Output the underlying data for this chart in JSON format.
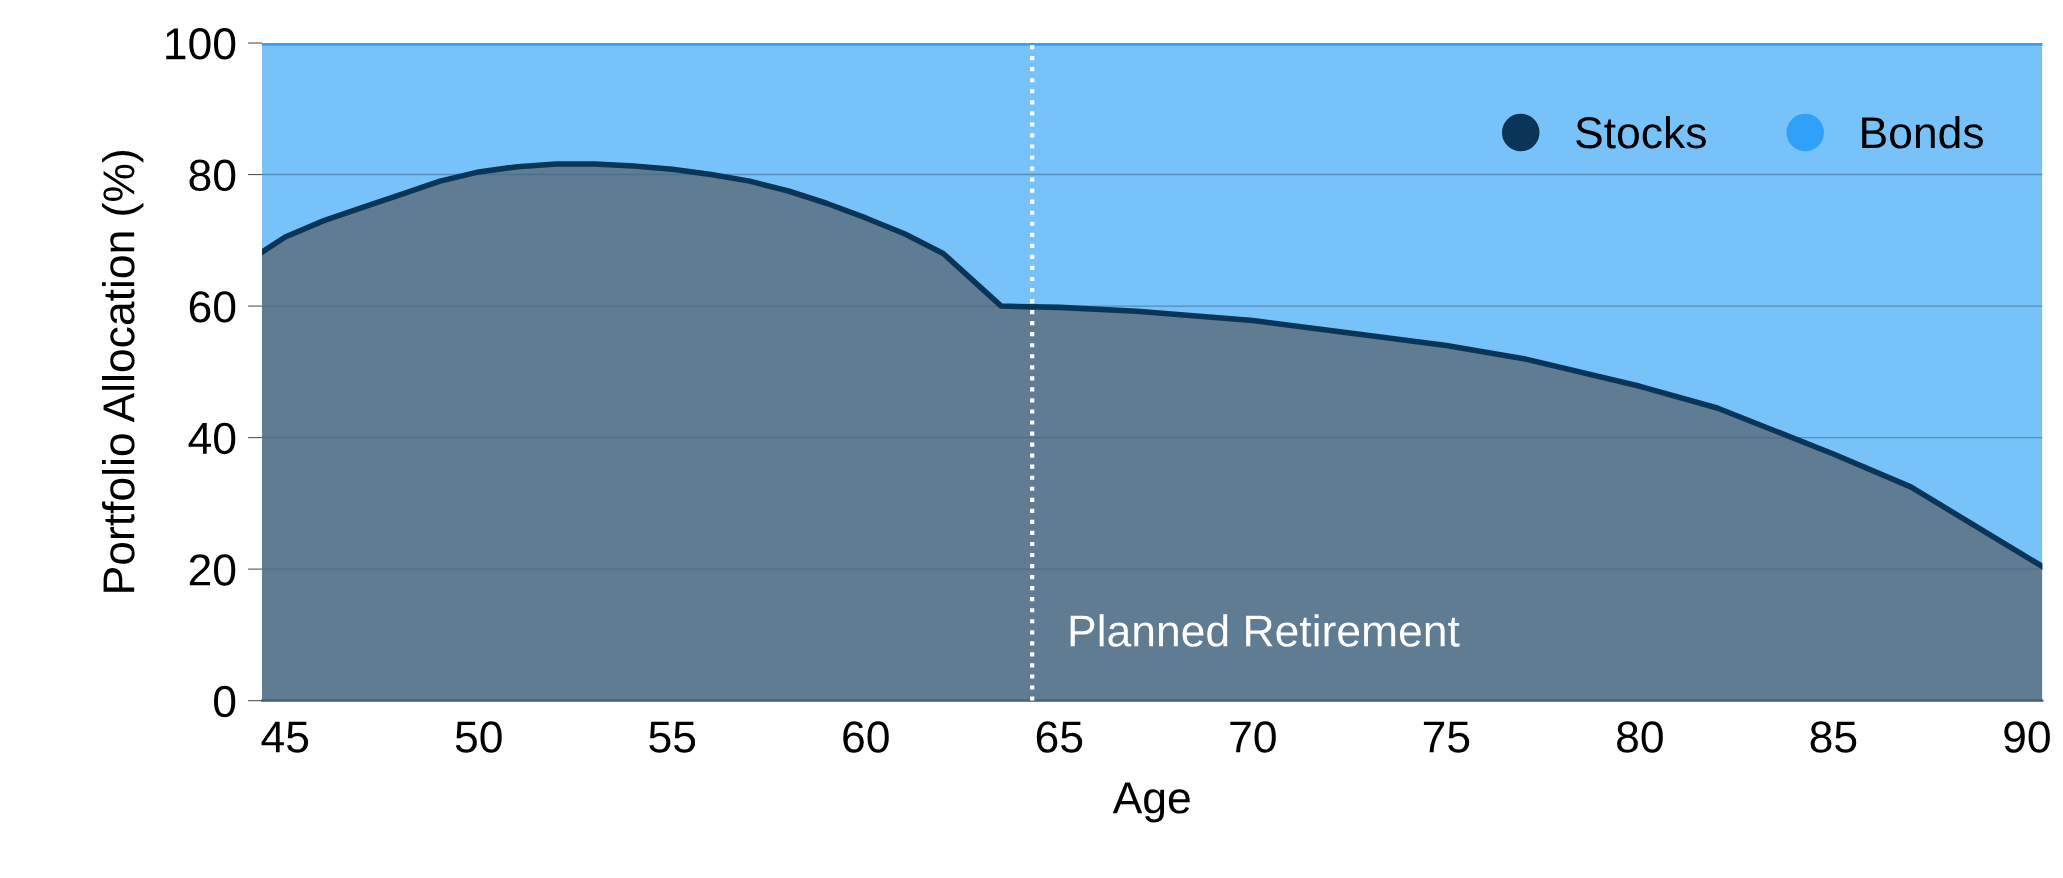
{
  "chart_data": {
    "type": "area",
    "stacked": true,
    "xlabel": "Age",
    "ylabel": "Portfolio Allocation (%)",
    "x": [
      44.4,
      45,
      46,
      47,
      48,
      49,
      50,
      51,
      52,
      53,
      54,
      55,
      56,
      57,
      58,
      59,
      60,
      61,
      62,
      63.5,
      65,
      67,
      70,
      72,
      75,
      77,
      80,
      82,
      85,
      87,
      90.4
    ],
    "series": [
      {
        "name": "Stocks",
        "color": "#0b3557",
        "values": [
          68.2,
          70.5,
          73,
          75,
          77,
          79,
          80.4,
          81.2,
          81.6,
          81.6,
          81.3,
          80.8,
          80,
          79,
          77.5,
          75.6,
          73.4,
          71,
          68,
          60,
          59.8,
          59.2,
          57.8,
          56.3,
          54,
          52,
          47.8,
          44.5,
          37.5,
          32.5,
          20.4
        ]
      },
      {
        "name": "Bonds",
        "color": "#2fa1f8",
        "values": [
          31.8,
          29.5,
          27,
          25,
          23,
          21,
          19.6,
          18.8,
          18.4,
          18.4,
          18.7,
          19.2,
          20,
          21,
          22.5,
          24.4,
          26.6,
          29,
          32,
          40,
          40.2,
          40.8,
          42.2,
          43.7,
          46,
          48,
          52.2,
          55.5,
          62.5,
          67.5,
          79.6
        ]
      }
    ],
    "xlim": [
      44.4,
      90.4
    ],
    "xticks": [
      45,
      50,
      55,
      60,
      65,
      70,
      75,
      80,
      85,
      90
    ],
    "ylim": [
      0,
      100
    ],
    "yticks": [
      0,
      20,
      40,
      60,
      80,
      100
    ],
    "ref_lines": [
      {
        "axis": "x",
        "value": 64.3,
        "label": "Planned Retirement",
        "color": "#ffffff",
        "line_style": "dotted"
      }
    ],
    "grid": "y",
    "legend": "top right"
  }
}
